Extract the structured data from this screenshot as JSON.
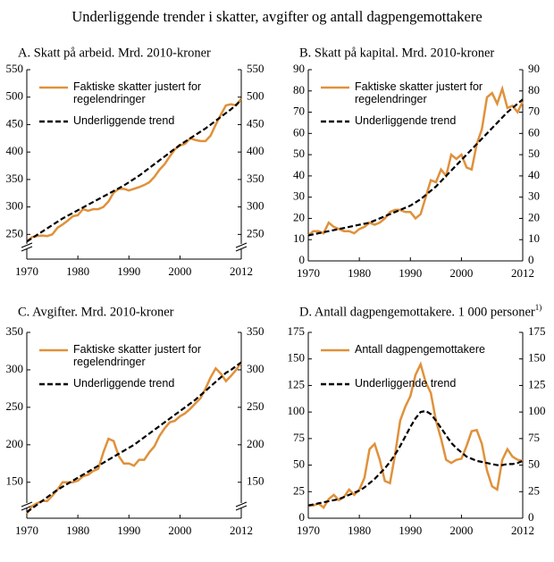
{
  "title": "Underliggende trender i skatter, avgifter og antall dagpengemottakere",
  "chart_data": [
    {
      "type": "line",
      "title": "A.  Skatt på arbeid. Mrd. 2010-kroner",
      "x": [
        1970,
        1971,
        1972,
        1973,
        1974,
        1975,
        1976,
        1977,
        1978,
        1979,
        1980,
        1981,
        1982,
        1983,
        1984,
        1985,
        1986,
        1987,
        1988,
        1989,
        1990,
        1991,
        1992,
        1993,
        1994,
        1995,
        1996,
        1997,
        1998,
        1999,
        2000,
        2001,
        2002,
        2003,
        2004,
        2005,
        2006,
        2007,
        2008,
        2009,
        2010,
        2011,
        2012
      ],
      "xlim": [
        1970,
        2012
      ],
      "xticks": [
        1970,
        1980,
        1990,
        2000,
        2012
      ],
      "ylim": [
        205,
        550
      ],
      "yticks": [
        250,
        300,
        350,
        400,
        450,
        500,
        550
      ],
      "axis_break": true,
      "series": [
        {
          "name": "Faktiske skatter justert for regelendringer",
          "color": "#e0913a",
          "style": "solid",
          "values": [
            237,
            245,
            247,
            248,
            247,
            250,
            262,
            268,
            275,
            283,
            285,
            296,
            293,
            296,
            296,
            300,
            310,
            326,
            333,
            333,
            330,
            333,
            336,
            340,
            345,
            355,
            368,
            378,
            392,
            405,
            412,
            415,
            425,
            422,
            420,
            420,
            430,
            450,
            468,
            485,
            487,
            485,
            497
          ]
        },
        {
          "name": "Underliggende trend",
          "color": "#000000",
          "style": "dashed",
          "values": [
            237,
            243,
            249,
            255,
            261,
            267,
            273,
            279,
            284,
            289,
            294,
            299,
            304,
            309,
            314,
            319,
            324,
            329,
            334,
            339,
            345,
            351,
            357,
            364,
            371,
            378,
            385,
            392,
            399,
            406,
            413,
            419,
            425,
            431,
            437,
            443,
            450,
            457,
            464,
            471,
            478,
            486,
            495
          ]
        }
      ]
    },
    {
      "type": "line",
      "title": "B.  Skatt på kapital. Mrd. 2010-kroner",
      "x": [
        1970,
        1971,
        1972,
        1973,
        1974,
        1975,
        1976,
        1977,
        1978,
        1979,
        1980,
        1981,
        1982,
        1983,
        1984,
        1985,
        1986,
        1987,
        1988,
        1989,
        1990,
        1991,
        1992,
        1993,
        1994,
        1995,
        1996,
        1997,
        1998,
        1999,
        2000,
        2001,
        2002,
        2003,
        2004,
        2005,
        2006,
        2007,
        2008,
        2009,
        2010,
        2011,
        2012
      ],
      "xlim": [
        1970,
        2012
      ],
      "xticks": [
        1970,
        1980,
        1990,
        2000,
        2012
      ],
      "ylim": [
        0,
        90
      ],
      "yticks": [
        0,
        10,
        20,
        30,
        40,
        50,
        60,
        70,
        80,
        90
      ],
      "axis_break": false,
      "series": [
        {
          "name": "Faktiske skatter justert for regelendringer",
          "color": "#e0913a",
          "style": "solid",
          "values": [
            12,
            14,
            14,
            13,
            18,
            16,
            15,
            14,
            14,
            13,
            15,
            16,
            18,
            17,
            18,
            20,
            23,
            24,
            24,
            23,
            23,
            20,
            22,
            30,
            38,
            37,
            43,
            40,
            50,
            48,
            50,
            44,
            43,
            55,
            62,
            77,
            79,
            74,
            81,
            72,
            73,
            70,
            75
          ]
        },
        {
          "name": "Underliggende trend",
          "color": "#000000",
          "style": "dashed",
          "values": [
            12,
            12.5,
            13,
            13.5,
            14,
            14.5,
            15,
            15.5,
            16,
            16.5,
            17,
            17.5,
            18,
            19,
            20,
            21,
            22,
            23,
            24,
            25,
            26,
            27.5,
            29,
            31,
            33,
            35,
            37.5,
            40,
            42.5,
            45,
            47.5,
            50,
            52.5,
            55,
            57.5,
            60,
            62.5,
            65,
            67.5,
            70,
            72,
            74,
            76
          ]
        }
      ]
    },
    {
      "type": "line",
      "title": "C.  Avgifter. Mrd. 2010-kroner",
      "x": [
        1970,
        1971,
        1972,
        1973,
        1974,
        1975,
        1976,
        1977,
        1978,
        1979,
        1980,
        1981,
        1982,
        1983,
        1984,
        1985,
        1986,
        1987,
        1988,
        1989,
        1990,
        1991,
        1992,
        1993,
        1994,
        1995,
        1996,
        1997,
        1998,
        1999,
        2000,
        2001,
        2002,
        2003,
        2004,
        2005,
        2006,
        2007,
        2008,
        2009,
        2010,
        2011,
        2012
      ],
      "xlim": [
        1970,
        2012
      ],
      "xticks": [
        1970,
        1980,
        1990,
        2000,
        2012
      ],
      "ylim": [
        102,
        350
      ],
      "yticks": [
        150,
        200,
        250,
        300,
        350
      ],
      "axis_break": true,
      "series": [
        {
          "name": "Faktiske skatter justert for regelendringer",
          "color": "#e0913a",
          "style": "solid",
          "values": [
            108,
            118,
            122,
            125,
            125,
            132,
            140,
            150,
            150,
            150,
            152,
            158,
            160,
            165,
            168,
            190,
            208,
            205,
            185,
            175,
            175,
            172,
            180,
            180,
            190,
            198,
            212,
            222,
            230,
            232,
            238,
            242,
            248,
            255,
            262,
            275,
            290,
            302,
            295,
            285,
            292,
            300,
            310
          ]
        },
        {
          "name": "Underliggende trend",
          "color": "#000000",
          "style": "dashed",
          "values": [
            110,
            115,
            120,
            125,
            130,
            135,
            140,
            144,
            148,
            152,
            156,
            160,
            164,
            168,
            172,
            176,
            180,
            184,
            188,
            192,
            196,
            200,
            205,
            210,
            215,
            220,
            225,
            230,
            235,
            240,
            245,
            250,
            255,
            260,
            266,
            272,
            278,
            284,
            290,
            296,
            300,
            305,
            310
          ]
        }
      ]
    },
    {
      "type": "line",
      "title": "D.  Antall dagpengemottakere. 1 000 personer",
      "title_note": "1)",
      "x": [
        1970,
        1971,
        1972,
        1973,
        1974,
        1975,
        1976,
        1977,
        1978,
        1979,
        1980,
        1981,
        1982,
        1983,
        1984,
        1985,
        1986,
        1987,
        1988,
        1989,
        1990,
        1991,
        1992,
        1993,
        1994,
        1995,
        1996,
        1997,
        1998,
        1999,
        2000,
        2001,
        2002,
        2003,
        2004,
        2005,
        2006,
        2007,
        2008,
        2009,
        2010,
        2011,
        2012
      ],
      "xlim": [
        1970,
        2012
      ],
      "xticks": [
        1970,
        1980,
        1990,
        2000,
        2012
      ],
      "ylim": [
        0,
        175
      ],
      "yticks": [
        0,
        25,
        50,
        75,
        100,
        125,
        150,
        175
      ],
      "axis_break": false,
      "series": [
        {
          "name": "Antall dagpengemottakere",
          "color": "#e0913a",
          "style": "solid",
          "values": [
            12,
            12,
            14,
            10,
            18,
            22,
            17,
            20,
            27,
            22,
            27,
            38,
            65,
            70,
            55,
            35,
            33,
            60,
            92,
            105,
            115,
            135,
            145,
            128,
            118,
            92,
            75,
            55,
            52,
            55,
            56,
            68,
            82,
            83,
            70,
            45,
            30,
            27,
            55,
            65,
            58,
            55,
            54
          ]
        },
        {
          "name": "Underliggende trend",
          "color": "#000000",
          "style": "dashed",
          "values": [
            12,
            13,
            14,
            15,
            16,
            17,
            18,
            20,
            22,
            24,
            26,
            29,
            33,
            37,
            42,
            47,
            53,
            60,
            68,
            77,
            86,
            94,
            100,
            101,
            98,
            92,
            85,
            78,
            71,
            66,
            62,
            58,
            56,
            54,
            53,
            52,
            51,
            50,
            50,
            51,
            51,
            52,
            54
          ]
        }
      ]
    }
  ]
}
